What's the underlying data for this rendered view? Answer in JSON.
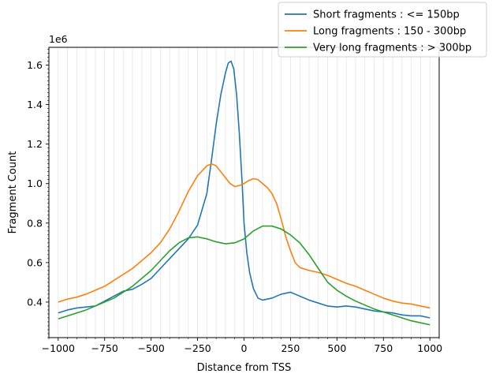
{
  "chart_data": {
    "type": "line",
    "xlabel": "Distance from TSS",
    "ylabel": "Fragment Count",
    "y_offset_label": "1e6",
    "xlim": [
      -1050,
      1050
    ],
    "ylim": [
      0.22,
      1.69
    ],
    "x_ticks": [
      -1000,
      -750,
      -500,
      -250,
      0,
      250,
      500,
      750,
      1000
    ],
    "x_tick_labels": [
      "−1000",
      "−750",
      "−500",
      "−250",
      "0",
      "250",
      "500",
      "750",
      "1000"
    ],
    "y_ticks": [
      0.4,
      0.6,
      0.8,
      1.0,
      1.2,
      1.4,
      1.6
    ],
    "y_tick_labels": [
      "0.4",
      "0.6",
      "0.8",
      "1.0",
      "1.2",
      "1.4",
      "1.6"
    ],
    "grid": "vertical minor gridlines",
    "legend_position": "upper right, outside plot",
    "series": [
      {
        "name": "Short fragments : <= 150bp",
        "color": "#1f77b4",
        "points": [
          [
            -1000,
            0.345
          ],
          [
            -950,
            0.36
          ],
          [
            -900,
            0.37
          ],
          [
            -850,
            0.375
          ],
          [
            -800,
            0.38
          ],
          [
            -750,
            0.405
          ],
          [
            -700,
            0.43
          ],
          [
            -650,
            0.455
          ],
          [
            -600,
            0.465
          ],
          [
            -550,
            0.49
          ],
          [
            -500,
            0.52
          ],
          [
            -450,
            0.57
          ],
          [
            -400,
            0.62
          ],
          [
            -350,
            0.67
          ],
          [
            -300,
            0.72
          ],
          [
            -250,
            0.79
          ],
          [
            -200,
            0.95
          ],
          [
            -175,
            1.12
          ],
          [
            -150,
            1.3
          ],
          [
            -125,
            1.45
          ],
          [
            -100,
            1.56
          ],
          [
            -85,
            1.61
          ],
          [
            -70,
            1.62
          ],
          [
            -55,
            1.58
          ],
          [
            -40,
            1.45
          ],
          [
            -25,
            1.25
          ],
          [
            -10,
            1.0
          ],
          [
            0,
            0.8
          ],
          [
            15,
            0.65
          ],
          [
            30,
            0.55
          ],
          [
            50,
            0.47
          ],
          [
            75,
            0.42
          ],
          [
            100,
            0.41
          ],
          [
            150,
            0.42
          ],
          [
            200,
            0.44
          ],
          [
            250,
            0.45
          ],
          [
            300,
            0.43
          ],
          [
            350,
            0.41
          ],
          [
            400,
            0.395
          ],
          [
            450,
            0.38
          ],
          [
            500,
            0.375
          ],
          [
            550,
            0.38
          ],
          [
            600,
            0.375
          ],
          [
            650,
            0.365
          ],
          [
            700,
            0.355
          ],
          [
            750,
            0.35
          ],
          [
            800,
            0.345
          ],
          [
            850,
            0.335
          ],
          [
            900,
            0.33
          ],
          [
            950,
            0.33
          ],
          [
            1000,
            0.32
          ]
        ]
      },
      {
        "name": "Long fragments : 150 - 300bp",
        "color": "#ff7f0e",
        "points": [
          [
            -1000,
            0.4
          ],
          [
            -950,
            0.415
          ],
          [
            -900,
            0.425
          ],
          [
            -850,
            0.44
          ],
          [
            -800,
            0.46
          ],
          [
            -750,
            0.48
          ],
          [
            -700,
            0.51
          ],
          [
            -650,
            0.54
          ],
          [
            -600,
            0.57
          ],
          [
            -550,
            0.61
          ],
          [
            -500,
            0.65
          ],
          [
            -450,
            0.7
          ],
          [
            -400,
            0.77
          ],
          [
            -350,
            0.86
          ],
          [
            -300,
            0.96
          ],
          [
            -250,
            1.04
          ],
          [
            -200,
            1.09
          ],
          [
            -175,
            1.1
          ],
          [
            -150,
            1.09
          ],
          [
            -125,
            1.06
          ],
          [
            -100,
            1.03
          ],
          [
            -75,
            1.0
          ],
          [
            -50,
            0.985
          ],
          [
            -25,
            0.99
          ],
          [
            0,
            1.0
          ],
          [
            25,
            1.015
          ],
          [
            50,
            1.025
          ],
          [
            75,
            1.02
          ],
          [
            100,
            1.0
          ],
          [
            125,
            0.98
          ],
          [
            150,
            0.95
          ],
          [
            175,
            0.9
          ],
          [
            200,
            0.82
          ],
          [
            225,
            0.73
          ],
          [
            250,
            0.66
          ],
          [
            275,
            0.6
          ],
          [
            300,
            0.575
          ],
          [
            350,
            0.56
          ],
          [
            400,
            0.55
          ],
          [
            450,
            0.535
          ],
          [
            500,
            0.515
          ],
          [
            550,
            0.495
          ],
          [
            600,
            0.48
          ],
          [
            650,
            0.46
          ],
          [
            700,
            0.44
          ],
          [
            750,
            0.42
          ],
          [
            800,
            0.405
          ],
          [
            850,
            0.395
          ],
          [
            900,
            0.39
          ],
          [
            950,
            0.38
          ],
          [
            1000,
            0.37
          ]
        ]
      },
      {
        "name": "Very long fragments : > 300bp",
        "color": "#2ca02c",
        "points": [
          [
            -1000,
            0.315
          ],
          [
            -950,
            0.33
          ],
          [
            -900,
            0.345
          ],
          [
            -850,
            0.36
          ],
          [
            -800,
            0.38
          ],
          [
            -750,
            0.4
          ],
          [
            -700,
            0.42
          ],
          [
            -650,
            0.45
          ],
          [
            -600,
            0.48
          ],
          [
            -550,
            0.52
          ],
          [
            -500,
            0.56
          ],
          [
            -450,
            0.61
          ],
          [
            -400,
            0.66
          ],
          [
            -350,
            0.7
          ],
          [
            -300,
            0.725
          ],
          [
            -250,
            0.73
          ],
          [
            -200,
            0.72
          ],
          [
            -150,
            0.705
          ],
          [
            -100,
            0.695
          ],
          [
            -50,
            0.7
          ],
          [
            0,
            0.72
          ],
          [
            50,
            0.76
          ],
          [
            100,
            0.785
          ],
          [
            150,
            0.785
          ],
          [
            200,
            0.77
          ],
          [
            250,
            0.74
          ],
          [
            300,
            0.7
          ],
          [
            350,
            0.64
          ],
          [
            400,
            0.57
          ],
          [
            450,
            0.5
          ],
          [
            500,
            0.46
          ],
          [
            550,
            0.43
          ],
          [
            600,
            0.405
          ],
          [
            650,
            0.385
          ],
          [
            700,
            0.365
          ],
          [
            750,
            0.35
          ],
          [
            800,
            0.335
          ],
          [
            850,
            0.32
          ],
          [
            900,
            0.305
          ],
          [
            950,
            0.295
          ],
          [
            1000,
            0.285
          ]
        ]
      }
    ]
  }
}
